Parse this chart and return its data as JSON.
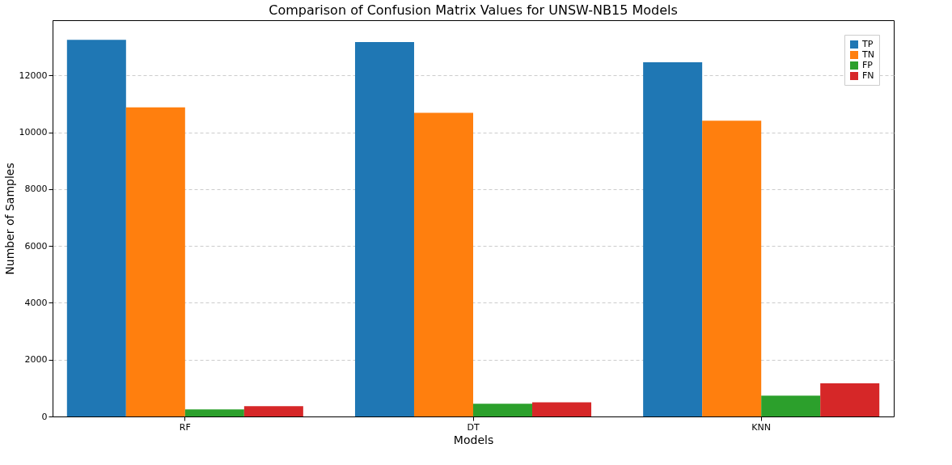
{
  "chart_data": {
    "type": "bar",
    "title": "Comparison of Confusion Matrix Values for UNSW-NB15 Models",
    "xlabel": "Models",
    "ylabel": "Number of Samples",
    "categories": [
      "RF",
      "DT",
      "KNN"
    ],
    "series": [
      {
        "name": "TP",
        "color": "#1f77b4",
        "values": [
          13260,
          13180,
          12470
        ]
      },
      {
        "name": "TN",
        "color": "#ff7f0e",
        "values": [
          10880,
          10690,
          10410
        ]
      },
      {
        "name": "FP",
        "color": "#2ca02c",
        "values": [
          250,
          450,
          730
        ]
      },
      {
        "name": "FN",
        "color": "#d62728",
        "values": [
          360,
          500,
          1170
        ]
      }
    ],
    "ylim": [
      0,
      13950
    ],
    "yticks": [
      0,
      2000,
      4000,
      6000,
      8000,
      10000,
      12000
    ],
    "grid": "y",
    "legend": "top right"
  }
}
